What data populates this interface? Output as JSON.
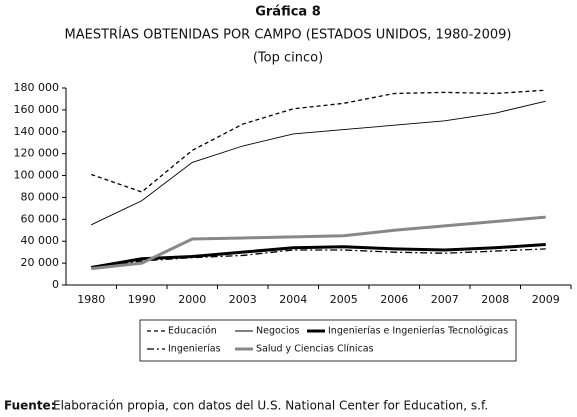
{
  "chart_data": {
    "type": "line",
    "title": "Gráfica 8",
    "subtitle": "MAESTRÍAS OBTENIDAS POR CAMPO (ESTADOS UNIDOS, 1980-2009)",
    "note": "(Top cinco)",
    "categories": [
      "1980",
      "1990",
      "2000",
      "2003",
      "2004",
      "2005",
      "2006",
      "2007",
      "2008",
      "2009"
    ],
    "series": [
      {
        "name": "Educación",
        "color": "#000000",
        "width": 1.3,
        "dash": "4 3",
        "values": [
          101000,
          85000,
          123000,
          147000,
          161000,
          166000,
          175000,
          176000,
          175000,
          178000
        ]
      },
      {
        "name": "Negocios",
        "color": "#000000",
        "width": 0.9,
        "dash": "none",
        "values": [
          55000,
          77000,
          112000,
          127000,
          138000,
          142000,
          146000,
          150000,
          157000,
          168000
        ]
      },
      {
        "name": "Ingenierías e Ingenierías Tecnológicas",
        "color": "#000000",
        "width": 3,
        "dash": "none",
        "values": [
          16000,
          24000,
          26000,
          30000,
          34000,
          35000,
          33000,
          32000,
          34000,
          37000
        ]
      },
      {
        "name": "Ingenierías",
        "color": "#000000",
        "width": 1.3,
        "dash": "7 3 2 3",
        "values": [
          15000,
          22000,
          25000,
          27000,
          32000,
          32000,
          30000,
          29000,
          31000,
          33000
        ]
      },
      {
        "name": "Salud y Ciencias Clínicas",
        "color": "#888888",
        "width": 3,
        "dash": "none",
        "values": [
          15000,
          20000,
          42000,
          43000,
          44000,
          45000,
          50000,
          54000,
          58000,
          62000
        ]
      }
    ],
    "ylim": [
      0,
      180000
    ],
    "yticks": [
      0,
      {
        "value": 20000,
        "label": "20 000"
      },
      {
        "value": 40000,
        "label": "40 000"
      },
      {
        "value": 60000,
        "label": "60 000"
      },
      {
        "value": 80000,
        "label": "80 000"
      },
      {
        "value": 100000,
        "label": "100 000"
      },
      {
        "value": 120000,
        "label": "120 000"
      },
      {
        "value": 140000,
        "label": "140 000"
      },
      {
        "value": 160000,
        "label": "160 000"
      },
      {
        "value": 180000,
        "label": "180 000"
      }
    ],
    "source_label": "Fuente:",
    "source": "Elaboración propia, con datos del U.S. National Center for Education, s.f."
  }
}
